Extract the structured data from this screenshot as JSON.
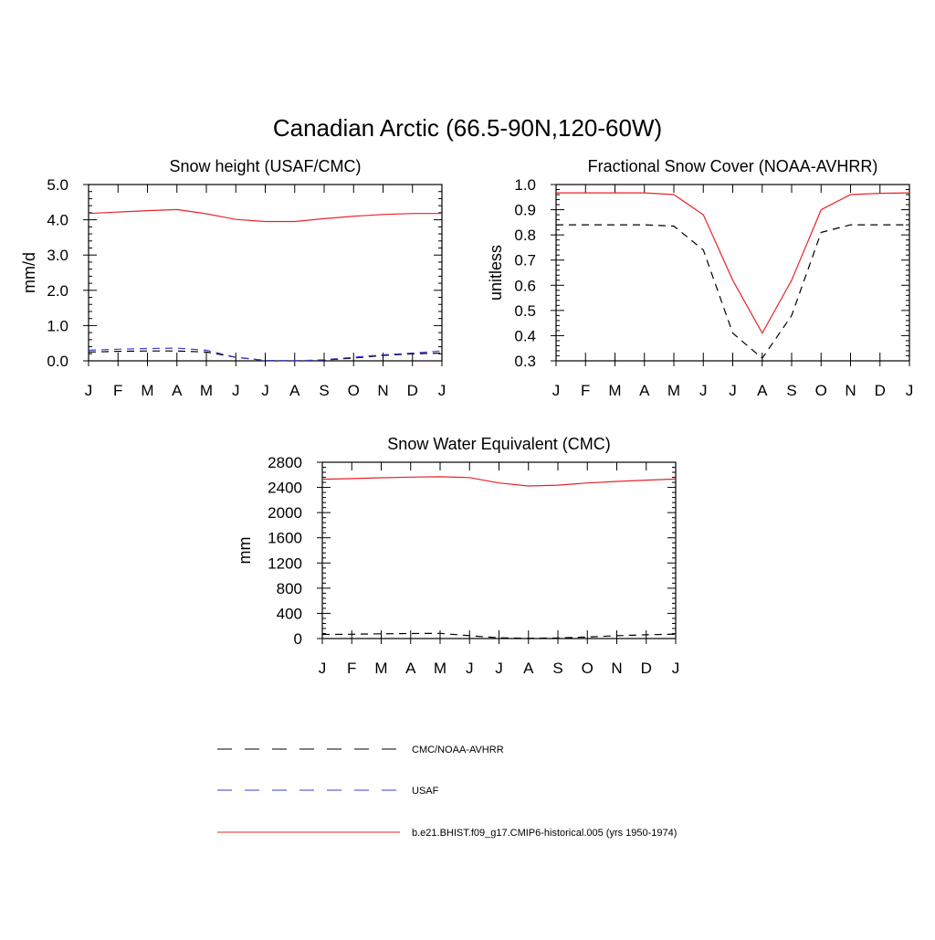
{
  "title": "Canadian Arctic (66.5-90N,120-60W)",
  "months": [
    "J",
    "F",
    "M",
    "A",
    "M",
    "J",
    "J",
    "A",
    "S",
    "O",
    "N",
    "D",
    "J"
  ],
  "colors": {
    "model": "#e8232a",
    "obs": "#000000",
    "usaf": "#3a3ad6"
  },
  "legend": [
    {
      "label": "CMC/NOAA-AVHRR",
      "style": "dashed",
      "color": "#000000"
    },
    {
      "label": "USAF",
      "style": "dashed",
      "color": "#3a3ad6"
    },
    {
      "label": "b.e21.BHIST.f09_g17.CMIP6-historical.005 (yrs 1950-1974)",
      "style": "solid",
      "color": "#e8232a"
    }
  ],
  "chart_data": [
    {
      "type": "line",
      "title": "Snow height (USAF/CMC)",
      "ylabel": "mm/d",
      "ylim": [
        0,
        5
      ],
      "yticks": [
        "0.0",
        "1.0",
        "2.0",
        "3.0",
        "4.0",
        "5.0"
      ],
      "ytick_values": [
        0,
        1,
        2,
        3,
        4,
        5
      ],
      "series": [
        {
          "name": "b.e21.BHIST.f09_g17.CMIP6-historical.005 (yrs 1950-1974)",
          "values": [
            4.18,
            4.22,
            4.26,
            4.29,
            4.17,
            4.01,
            3.95,
            3.95,
            4.03,
            4.1,
            4.15,
            4.18,
            4.18
          ]
        },
        {
          "name": "CMC/NOAA-AVHRR",
          "values": [
            0.25,
            0.27,
            0.28,
            0.28,
            0.25,
            0.1,
            0.01,
            0.0,
            0.02,
            0.08,
            0.15,
            0.2,
            0.22
          ]
        },
        {
          "name": "USAF",
          "values": [
            0.3,
            0.33,
            0.35,
            0.36,
            0.3,
            0.1,
            0.01,
            0.0,
            0.03,
            0.1,
            0.17,
            0.22,
            0.28
          ]
        }
      ]
    },
    {
      "type": "line",
      "title": "Fractional Snow Cover (NOAA-AVHRR)",
      "ylabel": "unitless",
      "ylim": [
        0.3,
        1.0
      ],
      "yticks": [
        "0.3",
        "0.4",
        "0.5",
        "0.6",
        "0.7",
        "0.8",
        "0.9",
        "1.0"
      ],
      "ytick_values": [
        0.3,
        0.4,
        0.5,
        0.6,
        0.7,
        0.8,
        0.9,
        1.0
      ],
      "series": [
        {
          "name": "b.e21.BHIST.f09_g17.CMIP6-historical.005 (yrs 1950-1974)",
          "values": [
            0.967,
            0.967,
            0.967,
            0.967,
            0.96,
            0.88,
            0.62,
            0.41,
            0.62,
            0.9,
            0.96,
            0.965,
            0.967
          ]
        },
        {
          "name": "CMC/NOAA-AVHRR",
          "values": [
            0.84,
            0.84,
            0.84,
            0.84,
            0.835,
            0.74,
            0.41,
            0.31,
            0.48,
            0.81,
            0.84,
            0.84,
            0.84
          ]
        }
      ]
    },
    {
      "type": "line",
      "title": "Snow Water Equivalent (CMC)",
      "ylabel": "mm",
      "ylim": [
        0,
        2800
      ],
      "yticks": [
        "0",
        "400",
        "800",
        "1200",
        "1600",
        "2000",
        "2400",
        "2800"
      ],
      "ytick_values": [
        0,
        400,
        800,
        1200,
        1600,
        2000,
        2400,
        2800
      ],
      "series": [
        {
          "name": "b.e21.BHIST.f09_g17.CMIP6-historical.005 (yrs 1950-1974)",
          "values": [
            2530,
            2540,
            2553,
            2563,
            2570,
            2556,
            2470,
            2423,
            2436,
            2470,
            2496,
            2516,
            2533
          ]
        },
        {
          "name": "CMC/NOAA-AVHRR",
          "values": [
            65,
            68,
            75,
            80,
            82,
            45,
            12,
            5,
            8,
            25,
            45,
            60,
            70
          ]
        }
      ]
    }
  ]
}
